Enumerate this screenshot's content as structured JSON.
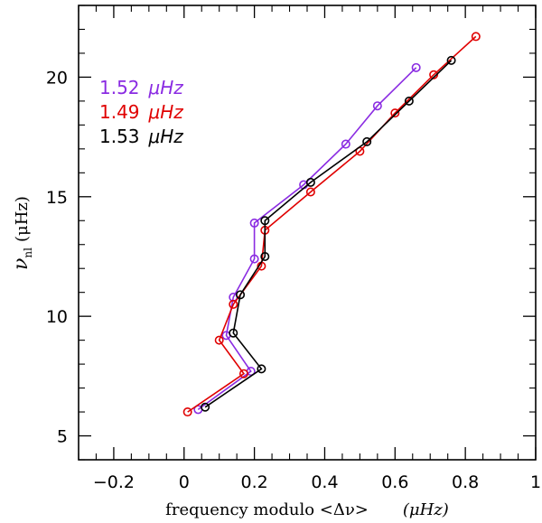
{
  "chart_data": {
    "type": "line",
    "title": "",
    "xlabel": "frequency modulo <Δν>",
    "xlabel_unit": "(μHz)",
    "ylabel": "ν",
    "ylabel_sub": "nl",
    "ylabel_unit": "(μHz)",
    "xlim": [
      -0.3,
      1.0
    ],
    "ylim": [
      4.0,
      23.0
    ],
    "x_ticks": [
      -0.2,
      0,
      0.2,
      0.4,
      0.6,
      0.8,
      1
    ],
    "x_tick_labels": [
      "−0.2",
      "0",
      "0.2",
      "0.4",
      "0.6",
      "0.8",
      "1"
    ],
    "y_ticks": [
      5,
      10,
      15,
      20
    ],
    "y_tick_labels": [
      "5",
      "10",
      "15",
      "20"
    ],
    "legend": [
      {
        "value": "1.52",
        "unit": "μHz",
        "color": "#8a2be2"
      },
      {
        "value": "1.49",
        "unit": "μHz",
        "color": "#e00000"
      },
      {
        "value": "1.53",
        "unit": "μHz",
        "color": "#000000"
      }
    ],
    "series": [
      {
        "name": "1.52 μHz",
        "color": "#8a2be2",
        "points": [
          [
            0.04,
            6.1
          ],
          [
            0.19,
            7.7
          ],
          [
            0.12,
            9.2
          ],
          [
            0.14,
            10.8
          ],
          [
            0.2,
            12.4
          ],
          [
            0.2,
            13.9
          ],
          [
            0.34,
            15.5
          ],
          [
            0.46,
            17.2
          ],
          [
            0.55,
            18.8
          ],
          [
            0.66,
            20.4
          ]
        ]
      },
      {
        "name": "1.49 μHz",
        "color": "#e00000",
        "points": [
          [
            0.01,
            6.0
          ],
          [
            0.17,
            7.6
          ],
          [
            0.1,
            9.0
          ],
          [
            0.14,
            10.5
          ],
          [
            0.22,
            12.1
          ],
          [
            0.23,
            13.6
          ],
          [
            0.36,
            15.2
          ],
          [
            0.5,
            16.9
          ],
          [
            0.6,
            18.5
          ],
          [
            0.71,
            20.1
          ],
          [
            0.83,
            21.7
          ]
        ]
      },
      {
        "name": "1.53 μHz",
        "color": "#000000",
        "points": [
          [
            0.06,
            6.2
          ],
          [
            0.22,
            7.8
          ],
          [
            0.14,
            9.3
          ],
          [
            0.16,
            10.9
          ],
          [
            0.23,
            12.5
          ],
          [
            0.23,
            14.0
          ],
          [
            0.36,
            15.6
          ],
          [
            0.52,
            17.3
          ],
          [
            0.64,
            19.0
          ],
          [
            0.76,
            20.7
          ]
        ]
      }
    ]
  }
}
